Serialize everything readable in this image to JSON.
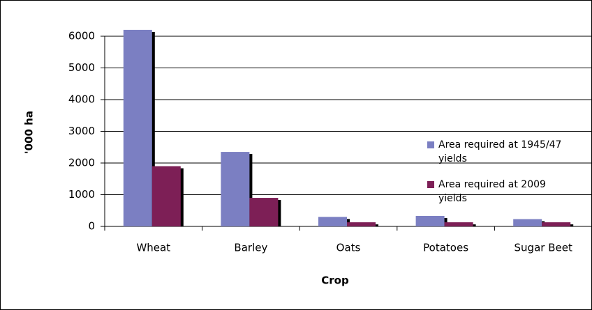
{
  "chart_data": {
    "type": "bar",
    "x_label": "Crop",
    "y_label": "'000 ha",
    "categories": [
      "Wheat",
      "Barley",
      "Oats",
      "Potatoes",
      "Sugar Beet"
    ],
    "series": [
      {
        "name": "Area required at 1945/47 yields",
        "color": "#7b7fc2",
        "values": [
          6200,
          2350,
          300,
          330,
          230
        ]
      },
      {
        "name": "Area required at 2009 yields",
        "color": "#7d1f56",
        "values": [
          1900,
          900,
          130,
          130,
          130
        ]
      }
    ],
    "ylim": [
      0,
      6000
    ],
    "yticks": [
      0,
      1000,
      2000,
      3000,
      4000,
      5000,
      6000
    ],
    "grid": true
  }
}
